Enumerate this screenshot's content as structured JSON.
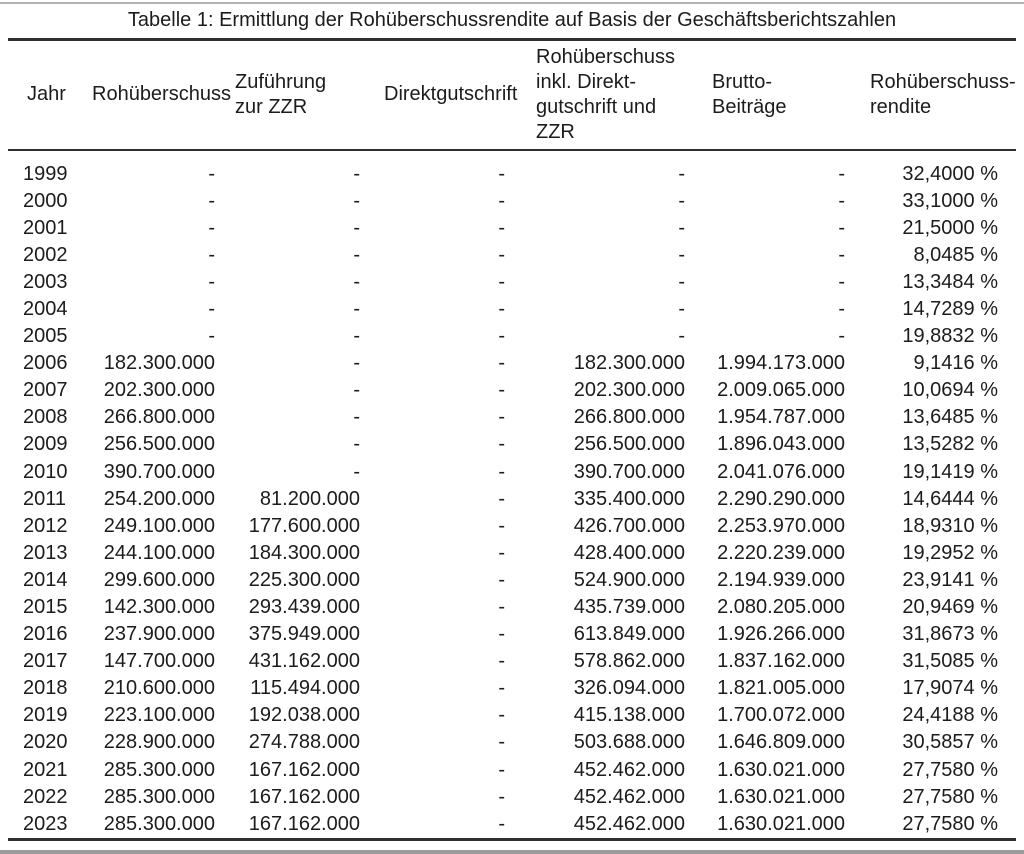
{
  "table": {
    "caption": "Tabelle 1: Ermittlung der Rohüberschussrendite auf Basis der Geschäftsberichtszahlen",
    "columns": [
      {
        "key": "jahr",
        "label": "Jahr"
      },
      {
        "key": "rohueberschuss",
        "label": "Rohüberschuss"
      },
      {
        "key": "zufuehrung-zur-zzr",
        "label": "Zuführung\nzur ZZR"
      },
      {
        "key": "direktgutschrift",
        "label": "Direktgutschrift"
      },
      {
        "key": "rohueberschuss-inkl-direktgutschrift-und-zzr",
        "label": "Rohüberschuss\ninkl. Direkt-\ngutschrift und\nZZR"
      },
      {
        "key": "brutto-beitraege",
        "label": "Brutto-\nBeiträge"
      },
      {
        "key": "rohueberschussrendite",
        "label": "Rohüberschuss-\nrendite"
      }
    ],
    "rows": [
      [
        "1999",
        "-",
        "-",
        "-",
        "-",
        "-",
        "32,4000 %"
      ],
      [
        "2000",
        "-",
        "-",
        "-",
        "-",
        "-",
        "33,1000 %"
      ],
      [
        "2001",
        "-",
        "-",
        "-",
        "-",
        "-",
        "21,5000 %"
      ],
      [
        "2002",
        "-",
        "-",
        "-",
        "-",
        "-",
        "8,0485 %"
      ],
      [
        "2003",
        "-",
        "-",
        "-",
        "-",
        "-",
        "13,3484 %"
      ],
      [
        "2004",
        "-",
        "-",
        "-",
        "-",
        "-",
        "14,7289 %"
      ],
      [
        "2005",
        "-",
        "-",
        "-",
        "-",
        "-",
        "19,8832 %"
      ],
      [
        "2006",
        "182.300.000",
        "-",
        "-",
        "182.300.000",
        "1.994.173.000",
        "9,1416 %"
      ],
      [
        "2007",
        "202.300.000",
        "-",
        "-",
        "202.300.000",
        "2.009.065.000",
        "10,0694 %"
      ],
      [
        "2008",
        "266.800.000",
        "-",
        "-",
        "266.800.000",
        "1.954.787.000",
        "13,6485 %"
      ],
      [
        "2009",
        "256.500.000",
        "-",
        "-",
        "256.500.000",
        "1.896.043.000",
        "13,5282 %"
      ],
      [
        "2010",
        "390.700.000",
        "-",
        "-",
        "390.700.000",
        "2.041.076.000",
        "19,1419 %"
      ],
      [
        "2011",
        "254.200.000",
        "81.200.000",
        "-",
        "335.400.000",
        "2.290.290.000",
        "14,6444 %"
      ],
      [
        "2012",
        "249.100.000",
        "177.600.000",
        "-",
        "426.700.000",
        "2.253.970.000",
        "18,9310 %"
      ],
      [
        "2013",
        "244.100.000",
        "184.300.000",
        "-",
        "428.400.000",
        "2.220.239.000",
        "19,2952 %"
      ],
      [
        "2014",
        "299.600.000",
        "225.300.000",
        "-",
        "524.900.000",
        "2.194.939.000",
        "23,9141 %"
      ],
      [
        "2015",
        "142.300.000",
        "293.439.000",
        "-",
        "435.739.000",
        "2.080.205.000",
        "20,9469 %"
      ],
      [
        "2016",
        "237.900.000",
        "375.949.000",
        "-",
        "613.849.000",
        "1.926.266.000",
        "31,8673 %"
      ],
      [
        "2017",
        "147.700.000",
        "431.162.000",
        "-",
        "578.862.000",
        "1.837.162.000",
        "31,5085 %"
      ],
      [
        "2018",
        "210.600.000",
        "115.494.000",
        "-",
        "326.094.000",
        "1.821.005.000",
        "17,9074 %"
      ],
      [
        "2019",
        "223.100.000",
        "192.038.000",
        "-",
        "415.138.000",
        "1.700.072.000",
        "24,4188 %"
      ],
      [
        "2020",
        "228.900.000",
        "274.788.000",
        "-",
        "503.688.000",
        "1.646.809.000",
        "30,5857 %"
      ],
      [
        "2021",
        "285.300.000",
        "167.162.000",
        "-",
        "452.462.000",
        "1.630.021.000",
        "27,7580 %"
      ],
      [
        "2022",
        "285.300.000",
        "167.162.000",
        "-",
        "452.462.000",
        "1.630.021.000",
        "27,7580 %"
      ],
      [
        "2023",
        "285.300.000",
        "167.162.000",
        "-",
        "452.462.000",
        "1.630.021.000",
        "27,7580 %"
      ]
    ]
  }
}
